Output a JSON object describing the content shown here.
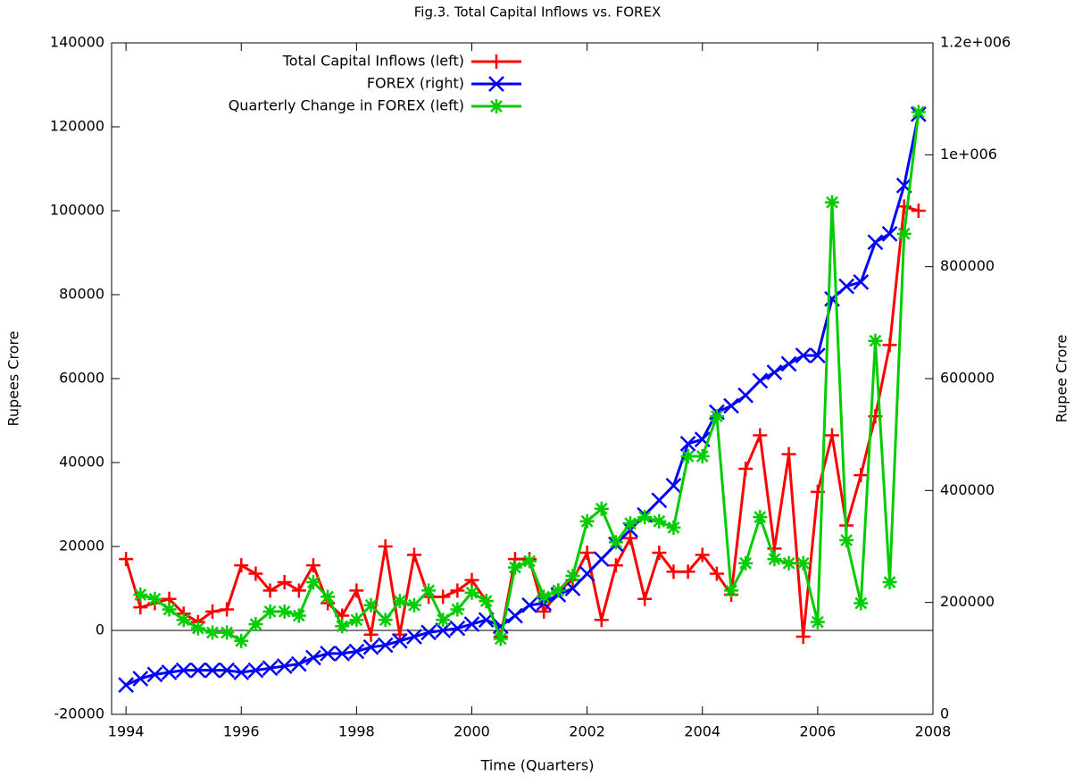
{
  "chart_data": {
    "type": "line",
    "title": "Fig.3. Total Capital Inflows vs. FOREX",
    "x_label": "Time (Quarters)",
    "y_label": "Rupees Crore",
    "y2_label": "Rupee Crore",
    "x": [
      1994,
      1994.25,
      1994.5,
      1994.75,
      1995,
      1995.25,
      1995.5,
      1995.75,
      1996,
      1996.25,
      1996.5,
      1996.75,
      1997,
      1997.25,
      1997.5,
      1997.75,
      1998,
      1998.25,
      1998.5,
      1998.75,
      1999,
      1999.25,
      1999.5,
      1999.75,
      2000,
      2000.25,
      2000.5,
      2000.75,
      2001,
      2001.25,
      2001.5,
      2001.75,
      2002,
      2002.25,
      2002.5,
      2002.75,
      2003,
      2003.25,
      2003.5,
      2003.75,
      2004,
      2004.25,
      2004.5,
      2004.75,
      2005,
      2005.25,
      2005.5,
      2005.75,
      2006,
      2006.25,
      2006.5,
      2006.75,
      2007,
      2007.25,
      2007.5,
      2007.75
    ],
    "series": [
      {
        "name": "Total Capital Inflows (left)",
        "color": "#ff0000",
        "marker": "plus",
        "values": [
          17000,
          5500,
          6500,
          7500,
          4000,
          2000,
          4500,
          5000,
          15500,
          13500,
          9500,
          11500,
          9500,
          15500,
          6500,
          3500,
          9500,
          -1000,
          20000,
          -1000,
          18000,
          8000,
          8000,
          9500,
          12000,
          7000,
          -1500,
          17000,
          17000,
          4500,
          9500,
          12000,
          18500,
          2500,
          15500,
          22000,
          7500,
          18500,
          14000,
          14000,
          18000,
          13500,
          8500,
          38500,
          46500,
          19500,
          42000,
          -1500,
          33000,
          46500,
          25000,
          37000,
          51000,
          68000,
          101000,
          100000
        ]
      },
      {
        "name": "FOREX (right)",
        "color": "#0000ff",
        "marker": "cross",
        "axis": "y2",
        "values": [
          52500,
          63750,
          71250,
          75000,
          78750,
          78750,
          78750,
          78750,
          75000,
          78750,
          82500,
          86250,
          90000,
          101250,
          108750,
          108750,
          112500,
          120000,
          123750,
          131250,
          138750,
          146250,
          150000,
          153750,
          161250,
          168750,
          157500,
          176250,
          195000,
          198750,
          213750,
          225000,
          251250,
          277500,
          303750,
          330000,
          356250,
          382500,
          408750,
          483750,
          491250,
          540000,
          551250,
          570000,
          596250,
          611250,
          626250,
          641250,
          641250,
          742500,
          765000,
          772500,
          843750,
          858750,
          945000,
          1072500
        ]
      },
      {
        "name": "Quarterly  Change in FOREX (left)",
        "color": "#00cc00",
        "marker": "star",
        "values": [
          null,
          8500,
          7500,
          5000,
          2500,
          500,
          -500,
          -500,
          -2500,
          1500,
          4500,
          4500,
          3500,
          11500,
          8000,
          1000,
          2500,
          6000,
          2500,
          7000,
          6000,
          9500,
          2500,
          5000,
          9000,
          7000,
          -2000,
          15000,
          16500,
          8000,
          9500,
          13000,
          26000,
          29000,
          21000,
          25500,
          27000,
          26000,
          24500,
          41500,
          41500,
          51000,
          9500,
          16000,
          27000,
          17000,
          16000,
          16000,
          2000,
          102000,
          21500,
          6500,
          69000,
          11500,
          94500,
          123500
        ]
      }
    ],
    "xlim": [
      1993.75,
      2008
    ],
    "xticks": [
      1994,
      1996,
      1998,
      2000,
      2002,
      2004,
      2006,
      2008
    ],
    "ylim": [
      -20000,
      140000
    ],
    "yticks": [
      -20000,
      0,
      20000,
      40000,
      60000,
      80000,
      100000,
      120000,
      140000
    ],
    "y2lim": [
      0,
      1200000
    ],
    "y2ticks": [
      0,
      200000,
      400000,
      600000,
      800000,
      {
        "value": 1000000,
        "label": "1e+006"
      },
      {
        "value": 1200000,
        "label": "1.2e+006"
      }
    ],
    "zero_axis": true,
    "grid": false,
    "legend": "top-left"
  }
}
